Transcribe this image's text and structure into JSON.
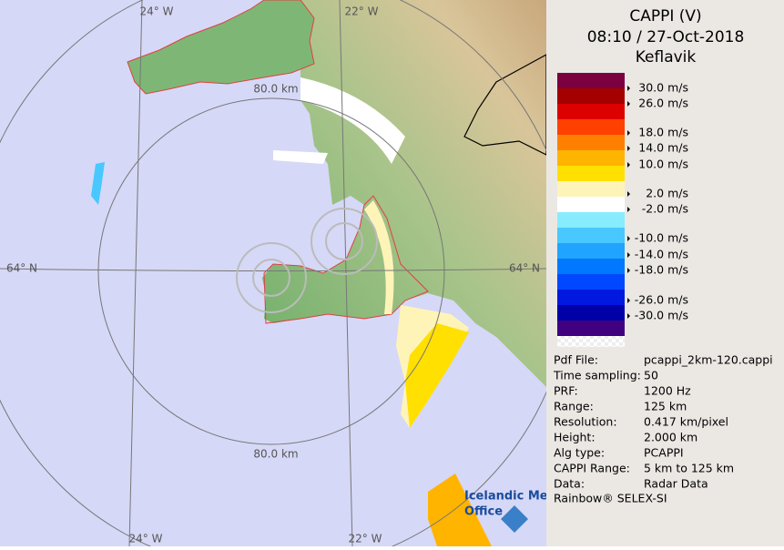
{
  "map": {
    "graticule": {
      "lon_top": [
        "24° W",
        "22° W"
      ],
      "lon_bottom": [
        "24° W",
        "22° W"
      ],
      "lat_left": "64° N",
      "lat_right": "64° N",
      "range_top": "80.0 km",
      "range_bottom": "80.0 km"
    },
    "logo": {
      "line1": "Icelandic Met",
      "line2": "Office"
    }
  },
  "panel": {
    "title": "CAPPI (V)",
    "time": "08:10 / 27-Oct-2018",
    "site": "Keflavik",
    "scale_colors": [
      "#7a0040",
      "#a40000",
      "#dc0000",
      "#ff4000",
      "#ff8000",
      "#ffb400",
      "#ffe000",
      "#fff4b8",
      "#ffffff",
      "#88ecff",
      "#48c8ff",
      "#20a4ff",
      "#0078ff",
      "#0048ff",
      "#0018e0",
      "#0000a8",
      "#400080"
    ],
    "scale_labels": [
      "30.0 m/s",
      "26.0 m/s",
      "18.0 m/s",
      "14.0 m/s",
      "10.0 m/s",
      "2.0 m/s",
      "-2.0 m/s",
      "-10.0 m/s",
      "-14.0 m/s",
      "-18.0 m/s",
      "-26.0 m/s",
      "-30.0 m/s"
    ],
    "info": [
      [
        "Pdf File:",
        "pcappi_2km-120.cappi"
      ],
      [
        "Time sampling:",
        "50"
      ],
      [
        "PRF:",
        "1200 Hz"
      ],
      [
        "Range:",
        "125 km"
      ],
      [
        "Resolution:",
        "0.417 km/pixel"
      ],
      [
        "Height:",
        "2.000 km"
      ],
      [
        "Alg type:",
        "PCAPPI"
      ],
      [
        "CAPPI Range:",
        "5 km to 125 km"
      ],
      [
        "Data:",
        "Radar Data"
      ]
    ],
    "footer": "Rainbow® SELEX-SI"
  }
}
